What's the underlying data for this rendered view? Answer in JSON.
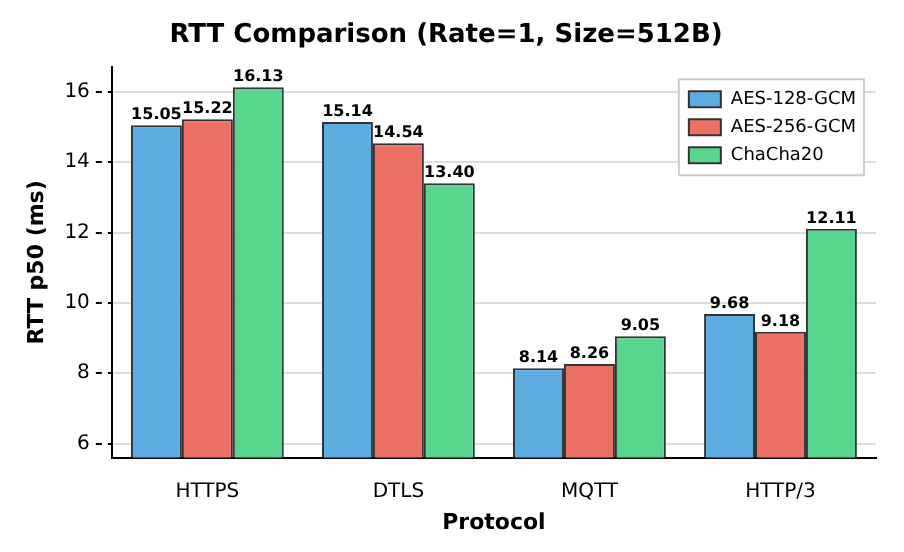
{
  "chart_data": {
    "type": "bar",
    "title": "RTT Comparison (Rate=1, Size=512B)",
    "xlabel": "Protocol",
    "ylabel": "RTT p50 (ms)",
    "categories": [
      "HTTPS",
      "DTLS",
      "MQTT",
      "HTTP/3"
    ],
    "series": [
      {
        "name": "AES-128-GCM",
        "color": "#5dade2",
        "values": [
          15.05,
          15.14,
          8.14,
          9.68
        ],
        "value_labels": [
          "15.05",
          "15.14",
          "8.14",
          "9.68"
        ]
      },
      {
        "name": "AES-256-GCM",
        "color": "#ec7063",
        "values": [
          15.22,
          14.54,
          8.26,
          9.18
        ],
        "value_labels": [
          "15.22",
          "14.54",
          "8.26",
          "9.18"
        ]
      },
      {
        "name": "ChaCha20",
        "color": "#58d68d",
        "values": [
          16.13,
          13.4,
          9.05,
          12.11
        ],
        "value_labels": [
          "16.13",
          "13.40",
          "9.05",
          "12.11"
        ]
      }
    ],
    "ylim": [
      5.6,
      16.7
    ],
    "yticks": [
      6,
      8,
      10,
      12,
      14,
      16
    ],
    "grid": "y",
    "legend": "top right"
  }
}
